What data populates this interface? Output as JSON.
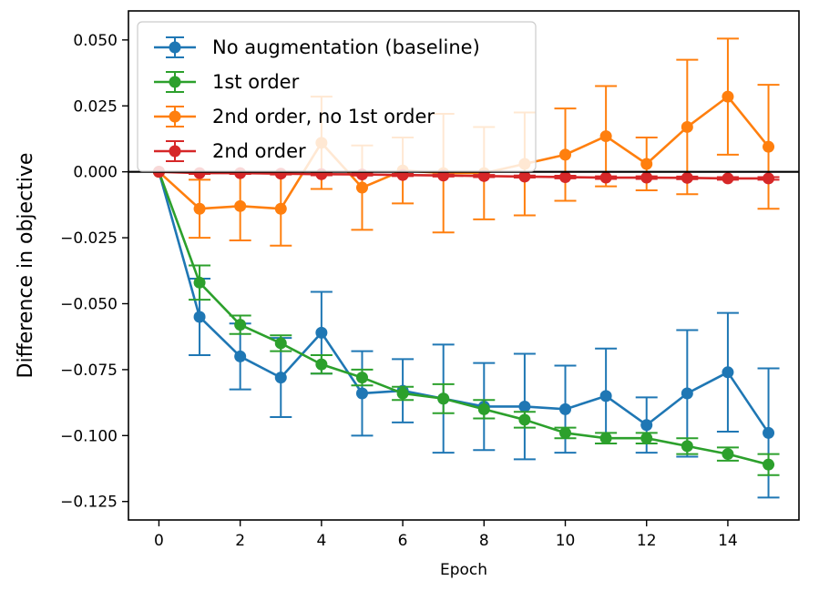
{
  "chart_data": {
    "type": "line",
    "title": "",
    "xlabel": "Epoch",
    "ylabel": "Difference in objective",
    "xlim": [
      -0.75,
      15.75
    ],
    "ylim": [
      -0.132,
      0.061
    ],
    "xticks": [
      0,
      2,
      4,
      6,
      8,
      10,
      12,
      14
    ],
    "yticks": [
      0.05,
      0.025,
      0.0,
      -0.025,
      -0.05,
      -0.075,
      -0.1,
      -0.125
    ],
    "ytick_labels": [
      "0.050",
      "0.025",
      "0.000",
      "−0.025",
      "−0.050",
      "−0.075",
      "−0.100",
      "−0.125"
    ],
    "reference_line": 0.0,
    "legend_position": "top-left",
    "grid": false,
    "x": [
      0,
      1,
      2,
      3,
      4,
      5,
      6,
      7,
      8,
      9,
      10,
      11,
      12,
      13,
      14,
      15
    ],
    "series": [
      {
        "name": "No augmentation (baseline)",
        "color": "#1f77b4",
        "values": [
          0.0,
          -0.055,
          -0.07,
          -0.078,
          -0.061,
          -0.084,
          -0.083,
          -0.086,
          -0.089,
          -0.089,
          -0.09,
          -0.085,
          -0.096,
          -0.084,
          -0.076,
          -0.099
        ],
        "errors": [
          0.0,
          0.0145,
          0.0125,
          0.015,
          0.0155,
          0.016,
          0.012,
          0.0205,
          0.0165,
          0.02,
          0.0165,
          0.018,
          0.0105,
          0.024,
          0.0225,
          0.0245
        ]
      },
      {
        "name": "1st order",
        "color": "#2ca02c",
        "values": [
          0.0,
          -0.042,
          -0.058,
          -0.065,
          -0.073,
          -0.078,
          -0.084,
          -0.086,
          -0.09,
          -0.094,
          -0.099,
          -0.101,
          -0.101,
          -0.104,
          -0.107,
          -0.111
        ],
        "errors": [
          0.0,
          0.0065,
          0.0035,
          0.003,
          0.0035,
          0.003,
          0.0025,
          0.0055,
          0.0035,
          0.003,
          0.002,
          0.002,
          0.002,
          0.003,
          0.0025,
          0.004
        ]
      },
      {
        "name": "2nd order, no 1st order",
        "color": "#ff7f0e",
        "values": [
          0.0,
          -0.014,
          -0.013,
          -0.014,
          0.011,
          -0.006,
          0.0005,
          -0.0005,
          -0.0005,
          0.003,
          0.0065,
          0.0135,
          0.003,
          0.017,
          0.0285,
          0.0095
        ],
        "errors": [
          0.0,
          0.011,
          0.013,
          0.014,
          0.0175,
          0.016,
          0.0125,
          0.0225,
          0.0175,
          0.0195,
          0.0175,
          0.019,
          0.01,
          0.0255,
          0.022,
          0.0235
        ]
      },
      {
        "name": "2nd order",
        "color": "#d62728",
        "values": [
          0.0,
          -0.0005,
          -0.0005,
          -0.0007,
          -0.0009,
          -0.001,
          -0.0012,
          -0.0014,
          -0.0016,
          -0.0018,
          -0.002,
          -0.0022,
          -0.0022,
          -0.0023,
          -0.0025,
          -0.0025
        ],
        "errors": [
          0.0,
          0.0003,
          0.0003,
          0.0003,
          0.0004,
          0.0004,
          0.0004,
          0.0004,
          0.0004,
          0.0004,
          0.0005,
          0.0005,
          0.0005,
          0.0005,
          0.0005,
          0.0005
        ]
      }
    ]
  }
}
